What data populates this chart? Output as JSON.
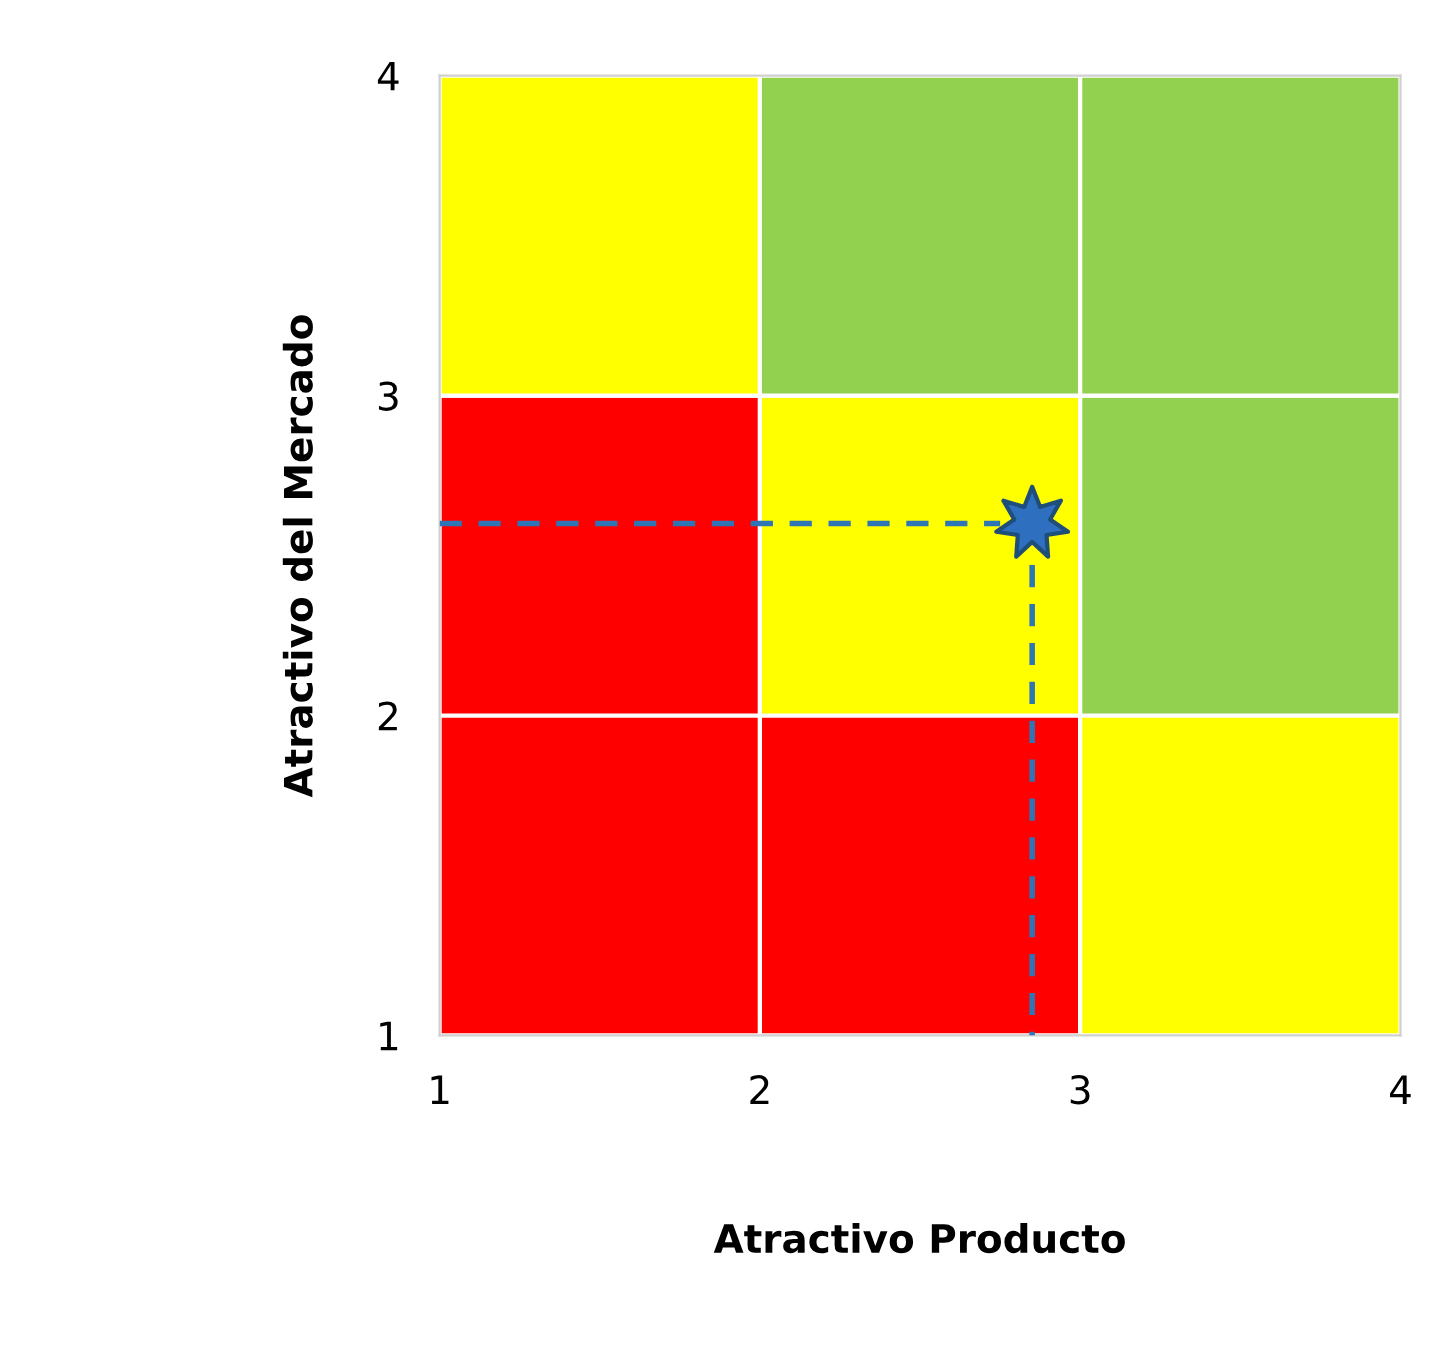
{
  "chart_data": {
    "type": "scatter",
    "xlabel": "Atractivo Producto",
    "ylabel": "Atractivo del Mercado",
    "xlim": [
      1,
      4
    ],
    "ylim": [
      1,
      4
    ],
    "xticks": [
      1,
      2,
      3,
      4
    ],
    "yticks": [
      1,
      2,
      3,
      4
    ],
    "grid": false,
    "legend": false,
    "series": [
      {
        "type": "line",
        "color": "#2e75b6",
        "x": [
          1,
          2.75
        ],
        "values": [
          2.6,
          2.6
        ],
        "line_style": "dashed",
        "marker": "none"
      },
      {
        "type": "line",
        "color": "#2e75b6",
        "x": [
          2.85,
          2.85
        ],
        "values": [
          2.47,
          1
        ],
        "line_style": "dashed",
        "marker": "none"
      },
      {
        "color": "#2f6fc0",
        "x": [
          2.85
        ],
        "values": [
          2.6
        ],
        "marker": "star"
      }
    ]
  }
}
